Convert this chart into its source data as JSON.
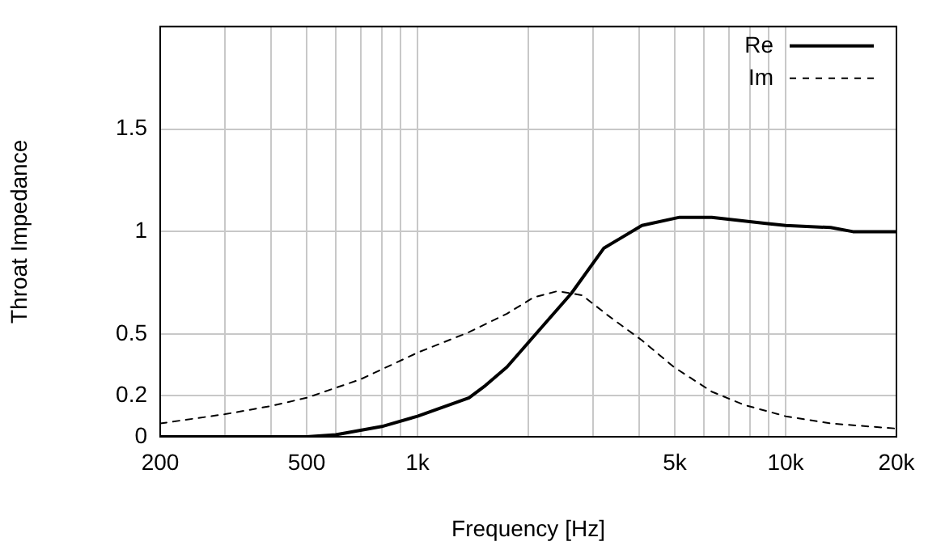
{
  "chart_data": {
    "type": "line",
    "xlabel": "Frequency [Hz]",
    "ylabel": "Throat Impedance",
    "log": "x",
    "grid": true,
    "legend": "top right",
    "marker": "none",
    "xlim": [
      200,
      20000
    ],
    "xticks": [
      200,
      {
        "value": 300,
        "label": null
      },
      {
        "value": 400,
        "label": null
      },
      500,
      {
        "value": 600,
        "label": null
      },
      {
        "value": 700,
        "label": null
      },
      {
        "value": 800,
        "label": null
      },
      {
        "value": 900,
        "label": null
      },
      {
        "value": 1000,
        "label": "1k"
      },
      {
        "value": 2000,
        "label": null
      },
      {
        "value": 3000,
        "label": null
      },
      {
        "value": 4000,
        "label": null
      },
      {
        "value": 5000,
        "label": "5k"
      },
      {
        "value": 6000,
        "label": null
      },
      {
        "value": 7000,
        "label": null
      },
      {
        "value": 8000,
        "label": null
      },
      {
        "value": 9000,
        "label": null
      },
      {
        "value": 10000,
        "label": "10k"
      },
      {
        "value": 20000,
        "label": "20k"
      }
    ],
    "ylim": [
      0,
      2
    ],
    "yticks": [
      0,
      0.2,
      0.5,
      1,
      1.5
    ],
    "series": [
      {
        "name": "Re",
        "color": "#000000",
        "line_style": "solid",
        "x": [
          200,
          300,
          400,
          500,
          600,
          800,
          1000,
          1380,
          1530,
          1750,
          2070,
          2620,
          3210,
          4070,
          5150,
          6300,
          8840,
          10000,
          13250,
          15240,
          20000
        ],
        "values": [
          0,
          0,
          0,
          0,
          0.01,
          0.05,
          0.1,
          0.19,
          0.25,
          0.34,
          0.49,
          0.7,
          0.92,
          1.03,
          1.07,
          1.07,
          1.04,
          1.03,
          1.02,
          1,
          1
        ]
      },
      {
        "name": "Im",
        "color": "#000000",
        "line_style": "dashed",
        "x": [
          200,
          300,
          400,
          500,
          700,
          1000,
          1380,
          1750,
          2070,
          2400,
          2800,
          3300,
          4070,
          4970,
          6300,
          7720,
          10000,
          13250,
          20000
        ],
        "values": [
          0.065,
          0.11,
          0.15,
          0.19,
          0.28,
          0.41,
          0.51,
          0.6,
          0.68,
          0.71,
          0.69,
          0.59,
          0.47,
          0.34,
          0.22,
          0.155,
          0.1,
          0.065,
          0.04
        ]
      }
    ]
  }
}
